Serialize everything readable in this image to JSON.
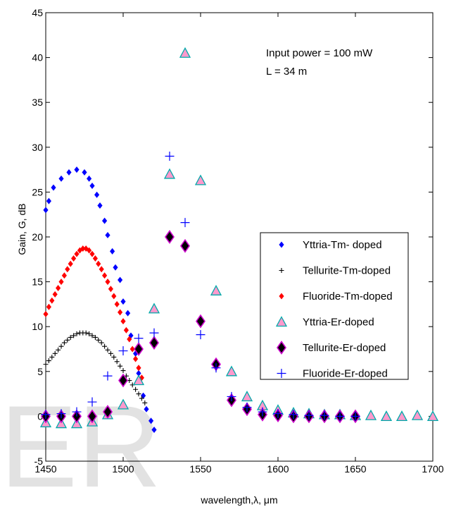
{
  "chart_data": {
    "type": "scatter",
    "title": "",
    "xlabel": "wavelength,λ, μm",
    "ylabel": "Gain, G, dB",
    "xlim": [
      1450,
      1700
    ],
    "ylim": [
      -5,
      45
    ],
    "xticks": [
      1450,
      1500,
      1550,
      1600,
      1650,
      1700
    ],
    "yticks": [
      -5,
      0,
      5,
      10,
      15,
      20,
      25,
      30,
      35,
      40,
      45
    ],
    "xtick_labels": [
      "1450",
      "1500",
      "1550",
      "1600",
      "1650",
      "1700"
    ],
    "ytick_labels": [
      "-5",
      "0",
      "5",
      "10",
      "15",
      "20",
      "25",
      "30",
      "35",
      "40",
      "45"
    ],
    "grid": false,
    "legend_position": "right",
    "annotations": [
      "Input power = 100 mW",
      "L = 34 m"
    ],
    "watermark": "ER",
    "series": [
      {
        "name": "Yttria-Tm- doped",
        "marker": "diamond",
        "color": "#0000ff",
        "x": [
          1450,
          1452,
          1455,
          1460,
          1465,
          1470,
          1475,
          1478,
          1480,
          1483,
          1485,
          1488,
          1490,
          1493,
          1495,
          1498,
          1500,
          1503,
          1505,
          1508,
          1510,
          1513,
          1515,
          1518,
          1520
        ],
        "y": [
          23.0,
          24.0,
          25.5,
          26.5,
          27.2,
          27.5,
          27.2,
          26.5,
          25.7,
          24.7,
          23.5,
          21.8,
          20.2,
          18.4,
          16.6,
          15.2,
          12.8,
          11.5,
          9.0,
          7.0,
          4.8,
          2.3,
          0.8,
          -0.5,
          -1.5
        ]
      },
      {
        "name": "Tellurite-Tm-doped",
        "marker": "plus",
        "color": "#000000",
        "x": [
          1450,
          1452,
          1454,
          1456,
          1458,
          1460,
          1462,
          1464,
          1466,
          1468,
          1470,
          1472,
          1474,
          1476,
          1478,
          1480,
          1482,
          1484,
          1486,
          1488,
          1490,
          1492,
          1494,
          1496,
          1498,
          1500,
          1502,
          1504,
          1506,
          1508,
          1510,
          1512,
          1514
        ],
        "y": [
          5.8,
          6.2,
          6.6,
          7.0,
          7.4,
          7.8,
          8.2,
          8.5,
          8.8,
          9.0,
          9.2,
          9.3,
          9.3,
          9.3,
          9.2,
          9.0,
          8.8,
          8.5,
          8.2,
          7.8,
          7.4,
          7.0,
          6.6,
          6.1,
          5.6,
          5.1,
          4.5,
          4.0,
          3.5,
          3.0,
          2.5,
          2.0,
          1.5
        ]
      },
      {
        "name": "Fluoride-Tm-doped",
        "marker": "diamond",
        "color": "#ff0000",
        "x": [
          1450,
          1452,
          1454,
          1456,
          1458,
          1460,
          1462,
          1464,
          1466,
          1468,
          1470,
          1472,
          1474,
          1476,
          1478,
          1480,
          1482,
          1484,
          1486,
          1488,
          1490,
          1492,
          1494,
          1496,
          1498,
          1500,
          1502,
          1504,
          1506,
          1508,
          1510,
          1512
        ],
        "y": [
          11.4,
          12.2,
          12.9,
          13.6,
          14.3,
          15.0,
          15.7,
          16.4,
          17.0,
          17.6,
          18.1,
          18.5,
          18.7,
          18.7,
          18.5,
          18.1,
          17.6,
          17.0,
          16.4,
          15.7,
          15.0,
          14.2,
          13.4,
          12.5,
          11.6,
          10.6,
          9.6,
          8.6,
          7.5,
          6.4,
          5.4,
          4.3
        ]
      },
      {
        "name": "Yttria-Er-doped",
        "marker": "triangle",
        "color": "#ff99cc",
        "edge_color": "#00aaaa",
        "x": [
          1450,
          1460,
          1470,
          1480,
          1490,
          1500,
          1510,
          1520,
          1530,
          1540,
          1550,
          1560,
          1570,
          1580,
          1590,
          1600,
          1610,
          1620,
          1630,
          1640,
          1650,
          1660,
          1670,
          1680,
          1690,
          1700
        ],
        "y": [
          -0.7,
          -0.8,
          -0.8,
          -0.6,
          0.2,
          1.3,
          4.0,
          12.0,
          27.0,
          40.5,
          26.3,
          14.0,
          5.0,
          2.2,
          1.2,
          0.7,
          0.4,
          0.3,
          0.2,
          0.2,
          0.1,
          0.1,
          0.0,
          0.0,
          0.1,
          0.0
        ]
      },
      {
        "name": "Tellurite-Er-doped",
        "marker": "diamond",
        "color": "#000000",
        "edge_color": "#cc00cc",
        "x": [
          1450,
          1460,
          1470,
          1480,
          1490,
          1500,
          1510,
          1520,
          1530,
          1540,
          1550,
          1560,
          1570,
          1580,
          1590,
          1600,
          1610,
          1620,
          1630,
          1640,
          1650
        ],
        "y": [
          0.0,
          0.0,
          0.0,
          0.0,
          0.5,
          4.0,
          7.5,
          8.2,
          20.0,
          19.0,
          10.6,
          5.8,
          1.8,
          0.8,
          0.2,
          0.1,
          0.0,
          0.0,
          0.0,
          0.0,
          0.0
        ]
      },
      {
        "name": "Fluoride-Er-doped",
        "marker": "plus",
        "color": "#0000ff",
        "x": [
          1450,
          1460,
          1470,
          1480,
          1490,
          1500,
          1510,
          1520,
          1530,
          1540,
          1550,
          1560,
          1570,
          1580,
          1590,
          1600,
          1610,
          1620,
          1630,
          1640,
          1650
        ],
        "y": [
          0.2,
          0.3,
          0.5,
          1.6,
          4.5,
          7.3,
          8.7,
          9.3,
          29.0,
          21.6,
          9.1,
          5.4,
          2.2,
          1.0,
          0.5,
          0.3,
          0.2,
          0.1,
          0.1,
          0.0,
          0.0
        ]
      }
    ]
  }
}
